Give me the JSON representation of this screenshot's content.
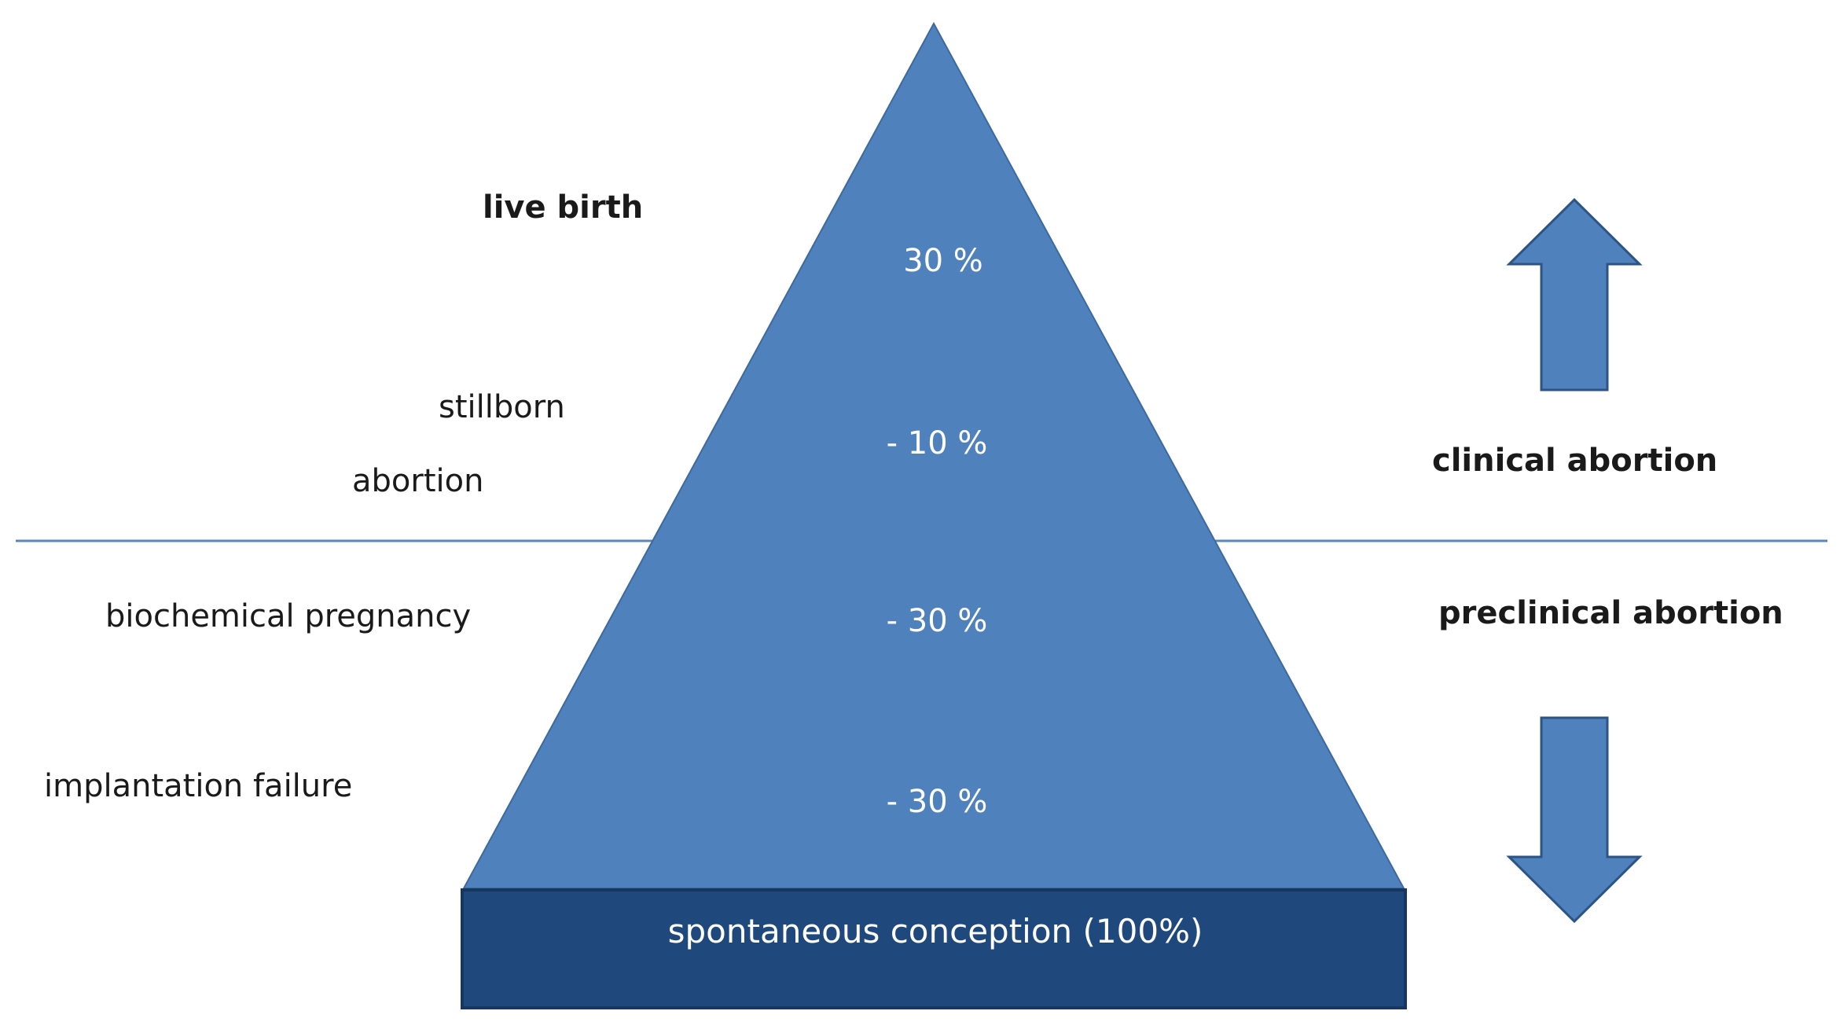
{
  "colors": {
    "pyramid_fill": "#4f81bd",
    "pyramid_stroke": "#3c6a9e",
    "base_fill": "#1f497d",
    "base_stroke": "#17375e",
    "arrow_fill": "#4f81bd",
    "arrow_stroke": "#2c5484",
    "divider": "#5b87b8"
  },
  "left_labels": {
    "live_birth": "live birth",
    "stillborn": "stillborn",
    "abortion": "abortion",
    "biochemical_pregnancy": "biochemical pregnancy",
    "implantation_failure": "implantation failure"
  },
  "pyramid_percentages": {
    "live_birth": "30 %",
    "stillborn_abortion": "- 10 %",
    "biochemical_pregnancy": "- 30 %",
    "implantation_failure": "- 30 %"
  },
  "base": {
    "label": "spontaneous conception (100%)"
  },
  "right_labels": {
    "clinical_abortion": "clinical abortion",
    "preclinical_abortion": "preclinical abortion"
  },
  "icons": {
    "up_arrow": "arrow-up-icon",
    "down_arrow": "arrow-down-icon"
  }
}
